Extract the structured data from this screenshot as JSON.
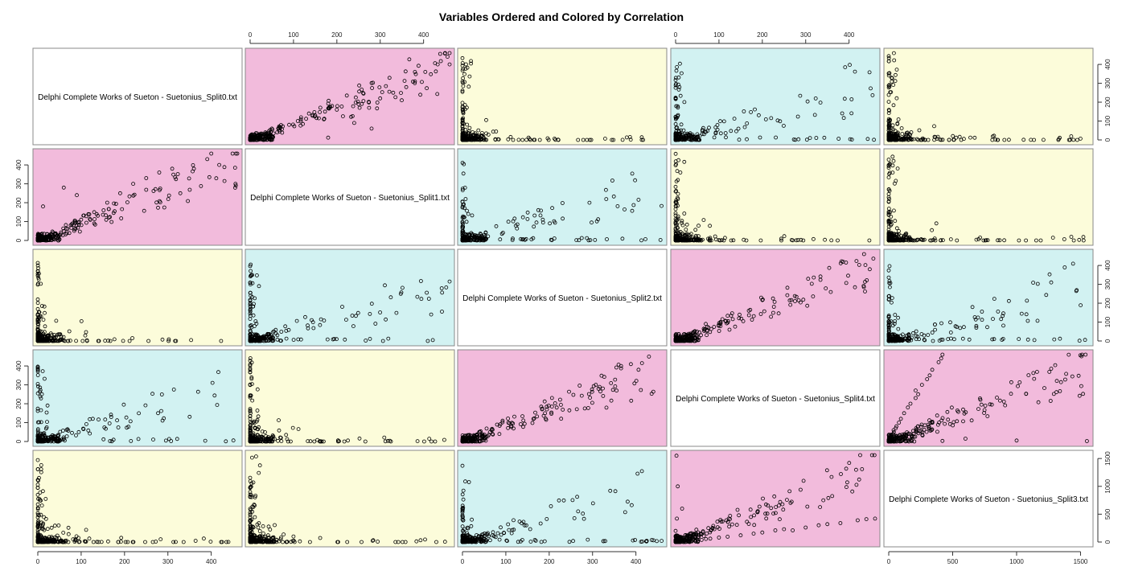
{
  "title": "Variables Ordered and Colored by Correlation",
  "chart_data": {
    "type": "scatter",
    "title": "Variables Ordered and Colored by Correlation",
    "variables": [
      "Delphi Complete Works of Sueton - Suetonius_Split0.txt",
      "Delphi Complete Works of Sueton - Suetonius_Split1.txt",
      "Delphi Complete Works of Sueton - Suetonius_Split2.txt",
      "Delphi Complete Works of Sueton - Suetonius_Split4.txt",
      "Delphi Complete Works of Sueton - Suetonius_Split3.txt"
    ],
    "ranges": [
      [
        0,
        460
      ],
      [
        0,
        460
      ],
      [
        0,
        460
      ],
      [
        0,
        460
      ],
      [
        0,
        1560
      ]
    ],
    "ticks": [
      [
        0,
        100,
        200,
        300,
        400
      ],
      [
        0,
        100,
        200,
        300,
        400
      ],
      [
        0,
        100,
        200,
        300,
        400
      ],
      [
        0,
        100,
        200,
        300,
        400
      ],
      [
        0,
        500,
        1000,
        1500
      ]
    ],
    "top_axis_columns": [
      1,
      3
    ],
    "bottom_axis_columns": [
      0,
      2,
      4
    ],
    "left_axis_rows": [
      1,
      3
    ],
    "right_axis_rows": [
      0,
      2,
      4
    ],
    "colors": {
      "high": "#f2bbdc",
      "medium": "#d2f2f2",
      "low": "#fcfcda",
      "diag": "#ffffff"
    },
    "panel_colors": [
      [
        "diag",
        "high",
        "low",
        "medium",
        "low"
      ],
      [
        "high",
        "diag",
        "medium",
        "low",
        "low"
      ],
      [
        "low",
        "medium",
        "diag",
        "high",
        "medium"
      ],
      [
        "medium",
        "low",
        "high",
        "diag",
        "high"
      ],
      [
        "low",
        "low",
        "medium",
        "high",
        "diag"
      ]
    ],
    "samples": [
      {
        "var_a": 3,
        "var_b": 4,
        "points": [
          [
            0,
            0
          ],
          [
            5,
            3
          ],
          [
            10,
            8
          ],
          [
            20,
            12
          ],
          [
            30,
            22
          ],
          [
            40,
            35
          ],
          [
            50,
            40
          ],
          [
            60,
            38
          ],
          [
            70,
            55
          ],
          [
            80,
            60
          ],
          [
            100,
            80
          ],
          [
            120,
            95
          ],
          [
            150,
            120
          ],
          [
            180,
            150
          ],
          [
            200,
            170
          ],
          [
            230,
            210
          ],
          [
            250,
            230
          ],
          [
            270,
            210
          ],
          [
            300,
            260
          ],
          [
            330,
            300
          ],
          [
            350,
            320
          ],
          [
            380,
            340
          ],
          [
            420,
            390
          ],
          [
            440,
            410
          ],
          [
            460,
            420
          ],
          [
            15,
            600
          ],
          [
            5,
            1000
          ],
          [
            2,
            1550
          ],
          [
            0,
            200
          ],
          [
            3,
            420
          ]
        ]
      },
      {
        "var_a": 0,
        "var_b": 1,
        "points": [
          [
            0,
            0
          ],
          [
            10,
            10
          ],
          [
            25,
            20
          ],
          [
            40,
            35
          ],
          [
            60,
            50
          ],
          [
            80,
            90
          ],
          [
            100,
            110
          ],
          [
            130,
            150
          ],
          [
            160,
            200
          ],
          [
            190,
            250
          ],
          [
            220,
            300
          ],
          [
            250,
            330
          ],
          [
            280,
            360
          ],
          [
            310,
            380
          ],
          [
            360,
            380
          ],
          [
            400,
            460
          ],
          [
            460,
            460
          ],
          [
            12,
            180
          ],
          [
            90,
            240
          ],
          [
            60,
            280
          ]
        ]
      }
    ]
  }
}
